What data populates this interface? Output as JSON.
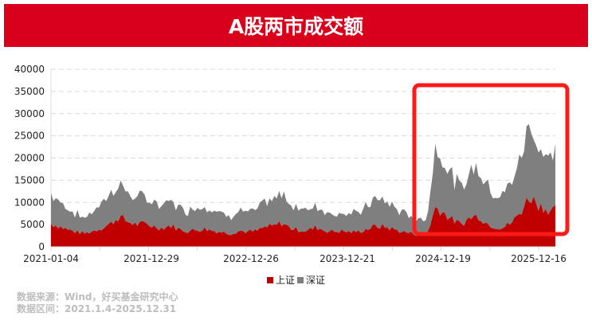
{
  "title": "A股两市成交额",
  "legend": [
    {
      "label": "上证",
      "color": "#c00000"
    },
    {
      "label": "深证",
      "color": "#7f7f7f"
    }
  ],
  "source": {
    "line1": "数据来源：Wind，好买基金研究中心",
    "line2": "数据区间：2021.1.4-2025.12.31"
  },
  "highlight": {
    "from": "2024-09",
    "to": "2025-12-31",
    "color": "#ff1a1a"
  },
  "chart_data": {
    "type": "area",
    "stacked": true,
    "title": "A股两市成交额",
    "xlabel": "",
    "ylabel": "",
    "ylim": [
      0,
      40000
    ],
    "yticks": [
      0,
      5000,
      10000,
      15000,
      20000,
      25000,
      30000,
      35000,
      40000
    ],
    "xtick_labels": [
      "2021-01-04",
      "2021-12-29",
      "2022-12-26",
      "2023-12-21",
      "2024-12-19",
      "2025-12-16"
    ],
    "grid": "horizontal dashed",
    "legend_position": "bottom",
    "x": [
      "2021-01",
      "2021-02",
      "2021-03",
      "2021-04",
      "2021-05",
      "2021-06",
      "2021-07",
      "2021-08",
      "2021-09",
      "2021-10",
      "2021-11",
      "2021-12",
      "2022-01",
      "2022-02",
      "2022-03",
      "2022-04",
      "2022-05",
      "2022-06",
      "2022-07",
      "2022-08",
      "2022-09",
      "2022-10",
      "2022-11",
      "2022-12",
      "2023-01",
      "2023-02",
      "2023-03",
      "2023-04",
      "2023-05",
      "2023-06",
      "2023-07",
      "2023-08",
      "2023-09",
      "2023-10",
      "2023-11",
      "2023-12",
      "2024-01",
      "2024-02",
      "2024-03",
      "2024-04",
      "2024-05",
      "2024-06",
      "2024-07",
      "2024-08",
      "2024-09",
      "2024-10",
      "2024-11",
      "2024-12",
      "2025-01",
      "2025-02",
      "2025-03",
      "2025-04",
      "2025-05",
      "2025-06",
      "2025-07",
      "2025-08",
      "2025-09",
      "2025-10",
      "2025-11",
      "2025-12"
    ],
    "series": [
      {
        "name": "上证",
        "values": [
          5200,
          4600,
          3800,
          3300,
          3000,
          3600,
          4300,
          5200,
          6800,
          5600,
          5000,
          5200,
          4600,
          4200,
          4800,
          3900,
          3500,
          3800,
          4000,
          3600,
          3300,
          3000,
          3600,
          3400,
          3500,
          4400,
          4600,
          5400,
          4200,
          3800,
          3600,
          4400,
          3700,
          3400,
          3500,
          3300,
          3400,
          4000,
          4600,
          4500,
          4000,
          3400,
          3100,
          2700,
          2900,
          9000,
          7500,
          6000,
          5000,
          6500,
          7000,
          5200,
          4500,
          4400,
          5600,
          8000,
          11500,
          9500,
          8500,
          8200
        ]
      },
      {
        "name": "深证",
        "values": [
          6800,
          5600,
          4800,
          4000,
          3500,
          4600,
          5700,
          6800,
          7800,
          6200,
          6200,
          5800,
          5400,
          4900,
          5800,
          4800,
          4700,
          5200,
          5300,
          4800,
          4100,
          3900,
          4600,
          4400,
          4500,
          5600,
          5700,
          6600,
          5500,
          5000,
          4600,
          5000,
          4400,
          4000,
          4300,
          4000,
          4300,
          5400,
          6100,
          5900,
          5200,
          4400,
          3900,
          3300,
          3600,
          14000,
          12000,
          9500,
          8000,
          10500,
          11000,
          8800,
          7400,
          7600,
          9400,
          12500,
          16500,
          13500,
          12000,
          12500
        ]
      }
    ]
  }
}
